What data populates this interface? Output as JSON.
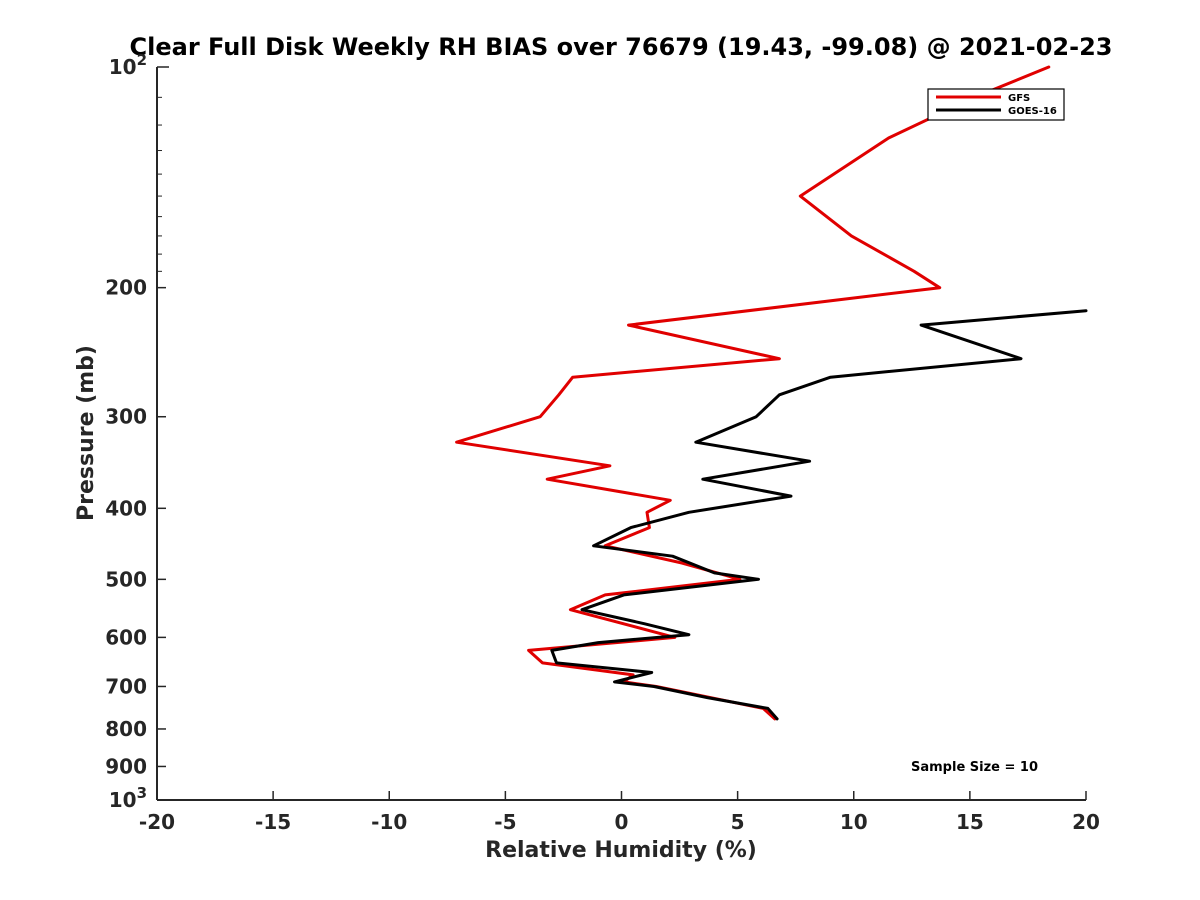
{
  "chart_data": {
    "type": "line",
    "title": "Clear Full Disk Weekly RH BIAS over 76679 (19.43, -99.08) @ 2021-02-23",
    "xlabel": "Relative Humidity (%)",
    "ylabel": "Pressure (mb)",
    "xlim": [
      -20,
      20
    ],
    "ylim": [
      100,
      1000
    ],
    "y_scale": "log",
    "y_reversed": true,
    "grid": false,
    "legend_position": "top-right",
    "x_ticks": [
      -20,
      -15,
      -10,
      -5,
      0,
      5,
      10,
      15,
      20
    ],
    "x_tick_labels": [
      "-20",
      "-15",
      "-10",
      "-5",
      "0",
      "5",
      "10",
      "15",
      "20"
    ],
    "y_ticks": [
      200,
      300,
      400,
      500,
      600,
      700,
      800,
      900
    ],
    "y_tick_labels": [
      "200",
      "300",
      "400",
      "500",
      "600",
      "700",
      "800",
      "900"
    ],
    "y_decade_ticks": [
      {
        "value": 100,
        "base": "10",
        "exp": "2"
      },
      {
        "value": 1000,
        "base": "10",
        "exp": "3"
      }
    ],
    "annotation": "Sample Size = 10",
    "series": [
      {
        "name": "GFS",
        "color": "#e00000",
        "points": [
          {
            "x": 18.4,
            "y": 100
          },
          {
            "x": 15.2,
            "y": 110
          },
          {
            "x": 11.5,
            "y": 125
          },
          {
            "x": 7.7,
            "y": 150
          },
          {
            "x": 9.9,
            "y": 170
          },
          {
            "x": 12.6,
            "y": 190
          },
          {
            "x": 13.7,
            "y": 200
          },
          {
            "x": 0.3,
            "y": 225
          },
          {
            "x": 6.8,
            "y": 250
          },
          {
            "x": -2.1,
            "y": 265
          },
          {
            "x": -2.7,
            "y": 280
          },
          {
            "x": -3.5,
            "y": 300
          },
          {
            "x": -7.1,
            "y": 325
          },
          {
            "x": -0.5,
            "y": 350
          },
          {
            "x": -3.2,
            "y": 365
          },
          {
            "x": 2.1,
            "y": 390
          },
          {
            "x": 1.1,
            "y": 405
          },
          {
            "x": 1.2,
            "y": 425
          },
          {
            "x": -0.7,
            "y": 450
          },
          {
            "x": 2.6,
            "y": 475
          },
          {
            "x": 5.1,
            "y": 500
          },
          {
            "x": -0.7,
            "y": 525
          },
          {
            "x": -2.2,
            "y": 550
          },
          {
            "x": 2.3,
            "y": 600
          },
          {
            "x": -4.0,
            "y": 625
          },
          {
            "x": -3.4,
            "y": 650
          },
          {
            "x": 0.5,
            "y": 675
          },
          {
            "x": 0.1,
            "y": 690
          },
          {
            "x": 1.5,
            "y": 700
          },
          {
            "x": 6.1,
            "y": 750
          },
          {
            "x": 6.6,
            "y": 775
          }
        ]
      },
      {
        "name": "GOES-16",
        "color": "#000000",
        "points": [
          {
            "x": 20.0,
            "y": 215
          },
          {
            "x": 12.9,
            "y": 225
          },
          {
            "x": 17.2,
            "y": 250
          },
          {
            "x": 9.0,
            "y": 265
          },
          {
            "x": 6.8,
            "y": 280
          },
          {
            "x": 5.8,
            "y": 300
          },
          {
            "x": 3.2,
            "y": 325
          },
          {
            "x": 8.1,
            "y": 345
          },
          {
            "x": 3.5,
            "y": 365
          },
          {
            "x": 7.3,
            "y": 385
          },
          {
            "x": 2.9,
            "y": 405
          },
          {
            "x": 0.4,
            "y": 425
          },
          {
            "x": -1.2,
            "y": 450
          },
          {
            "x": 2.2,
            "y": 465
          },
          {
            "x": 4.0,
            "y": 490
          },
          {
            "x": 5.9,
            "y": 500
          },
          {
            "x": 0.1,
            "y": 525
          },
          {
            "x": -1.7,
            "y": 550
          },
          {
            "x": 1.0,
            "y": 575
          },
          {
            "x": 2.9,
            "y": 595
          },
          {
            "x": -1.0,
            "y": 610
          },
          {
            "x": -3.0,
            "y": 625
          },
          {
            "x": -2.8,
            "y": 650
          },
          {
            "x": 1.3,
            "y": 670
          },
          {
            "x": -0.3,
            "y": 690
          },
          {
            "x": 1.4,
            "y": 700
          },
          {
            "x": 3.7,
            "y": 725
          },
          {
            "x": 6.3,
            "y": 750
          },
          {
            "x": 6.7,
            "y": 775
          }
        ]
      }
    ]
  }
}
